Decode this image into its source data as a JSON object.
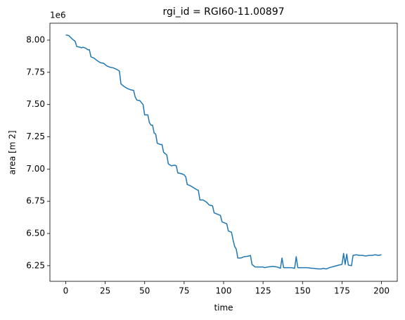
{
  "chart_data": {
    "type": "line",
    "title": "rgi_id = RGI60-11.00897",
    "x_label": "time",
    "y_label": "area [m 2]",
    "y_offset_label": "1e6",
    "color": "#1f77b4",
    "x": [
      0,
      2,
      4,
      6,
      7,
      9,
      10,
      11,
      13,
      14,
      15,
      16,
      18,
      20,
      22,
      24,
      26,
      28,
      30,
      32,
      34,
      35,
      37,
      39,
      41,
      43,
      44,
      45,
      47,
      49,
      50,
      52,
      53,
      54,
      55,
      56,
      57,
      58,
      60,
      61,
      62,
      64,
      65,
      67,
      69,
      70,
      71,
      73,
      75,
      76,
      77,
      79,
      81,
      83,
      84,
      85,
      87,
      89,
      91,
      93,
      94,
      96,
      98,
      99,
      101,
      102,
      103,
      105,
      106,
      107,
      108,
      109,
      111,
      113,
      116,
      117,
      118,
      120,
      123,
      125,
      126,
      128,
      131,
      134,
      136,
      137,
      138,
      140,
      143,
      145,
      146,
      147,
      150,
      153,
      156,
      157,
      160,
      162,
      163,
      165,
      167,
      170,
      173,
      175,
      176,
      177,
      178,
      179,
      181,
      182,
      184,
      186,
      188,
      190,
      192,
      194,
      196,
      198,
      200
    ],
    "values": [
      8040000,
      8035000,
      8010000,
      7990000,
      7950000,
      7945000,
      7940000,
      7945000,
      7935000,
      7925000,
      7925000,
      7870000,
      7860000,
      7840000,
      7825000,
      7820000,
      7800000,
      7790000,
      7785000,
      7775000,
      7760000,
      7660000,
      7640000,
      7625000,
      7615000,
      7610000,
      7560000,
      7535000,
      7530000,
      7500000,
      7420000,
      7420000,
      7360000,
      7340000,
      7340000,
      7280000,
      7270000,
      7200000,
      7190000,
      7190000,
      7130000,
      7110000,
      7040000,
      7025000,
      7030000,
      7025000,
      6970000,
      6965000,
      6955000,
      6940000,
      6880000,
      6870000,
      6855000,
      6840000,
      6835000,
      6760000,
      6760000,
      6745000,
      6720000,
      6715000,
      6660000,
      6650000,
      6640000,
      6590000,
      6580000,
      6575000,
      6520000,
      6510000,
      6450000,
      6400000,
      6380000,
      6310000,
      6310000,
      6320000,
      6325000,
      6330000,
      6260000,
      6240000,
      6240000,
      6240000,
      6235000,
      6240000,
      6245000,
      6240000,
      6230000,
      6310000,
      6235000,
      6235000,
      6235000,
      6230000,
      6320000,
      6235000,
      6235000,
      6235000,
      6230000,
      6230000,
      6225000,
      6225000,
      6230000,
      6225000,
      6235000,
      6245000,
      6255000,
      6260000,
      6345000,
      6260000,
      6340000,
      6255000,
      6250000,
      6330000,
      6335000,
      6330000,
      6330000,
      6325000,
      6330000,
      6330000,
      6335000,
      6330000,
      6335000
    ],
    "xlim": [
      -10,
      210
    ],
    "xticks": [
      0,
      25,
      50,
      75,
      100,
      125,
      150,
      175,
      200
    ],
    "ylim": [
      6129000,
      8131000
    ],
    "yticks": [
      {
        "value": 6250000,
        "label": "6.25"
      },
      {
        "value": 6500000,
        "label": "6.50"
      },
      {
        "value": 6750000,
        "label": "6.75"
      },
      {
        "value": 7000000,
        "label": "7.00"
      },
      {
        "value": 7250000,
        "label": "7.25"
      },
      {
        "value": 7500000,
        "label": "7.50"
      },
      {
        "value": 7750000,
        "label": "7.75"
      },
      {
        "value": 8000000,
        "label": "8.00"
      }
    ],
    "grid": false
  }
}
